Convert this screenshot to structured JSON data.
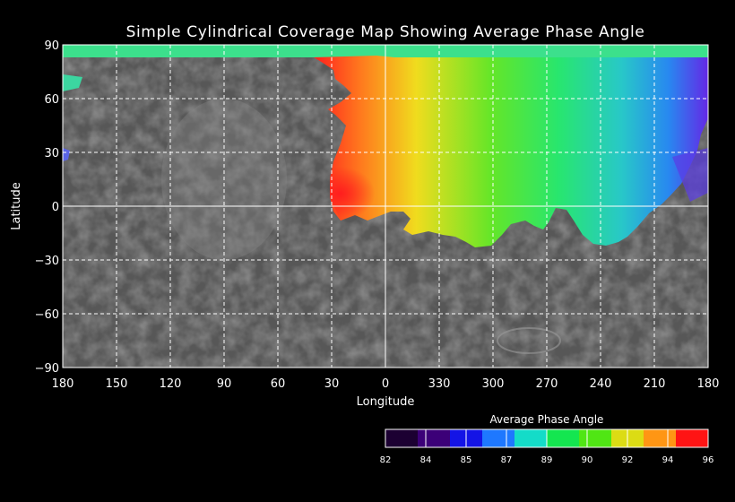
{
  "title": "Simple Cylindrical Coverage Map Showing Average Phase Angle",
  "xlabel": "Longitude",
  "ylabel": "Latitude",
  "x_ticks": [
    "180",
    "150",
    "120",
    "90",
    "60",
    "30",
    "0",
    "330",
    "300",
    "270",
    "240",
    "210",
    "180"
  ],
  "y_ticks": [
    "90",
    "60",
    "30",
    "0",
    "−30",
    "−60",
    "−90"
  ],
  "colorbar": {
    "title": "Average Phase Angle",
    "ticks": [
      "82",
      "84",
      "85",
      "87",
      "89",
      "90",
      "92",
      "94",
      "96"
    ],
    "colors": [
      "#1c0032",
      "#3c0078",
      "#1414e6",
      "#1e78ff",
      "#14dcc8",
      "#14e650",
      "#50e614",
      "#dcdc14",
      "#ff9614",
      "#ff1414"
    ]
  },
  "colors": {
    "background": "#000000",
    "grid": "#ffffff",
    "basemap": "#5a5a5a"
  }
}
